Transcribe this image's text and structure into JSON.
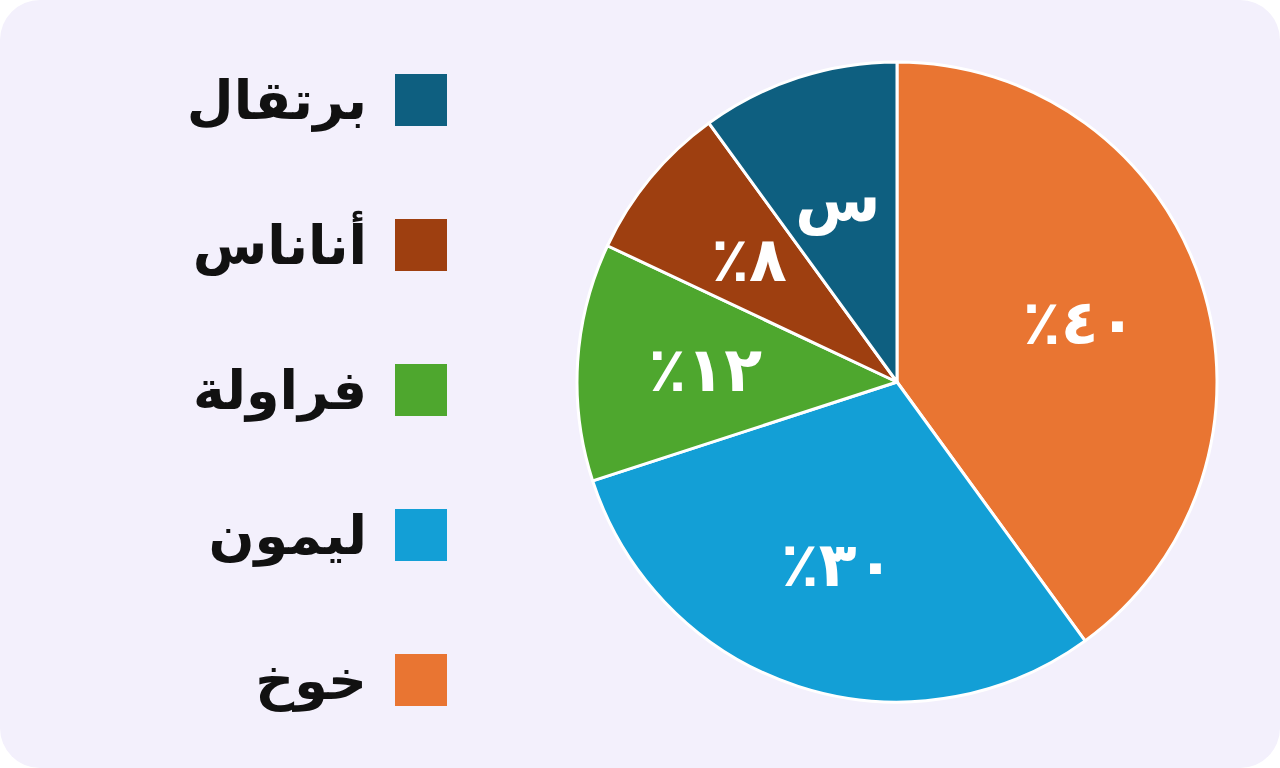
{
  "chart_data": {
    "type": "pie",
    "categories": [
      "خوخ",
      "ليمون",
      "فراولة",
      "أناناس",
      "برتقال"
    ],
    "values": [
      40,
      30,
      12,
      8,
      10
    ],
    "colors": [
      "#e97532",
      "#139fd6",
      "#4ea72e",
      "#9e3f10",
      "#0e5f80"
    ],
    "value_labels": [
      "٤٠٪",
      "٣٠٪",
      "١٢٪",
      "٨٪",
      "س"
    ],
    "legend": "left"
  }
}
